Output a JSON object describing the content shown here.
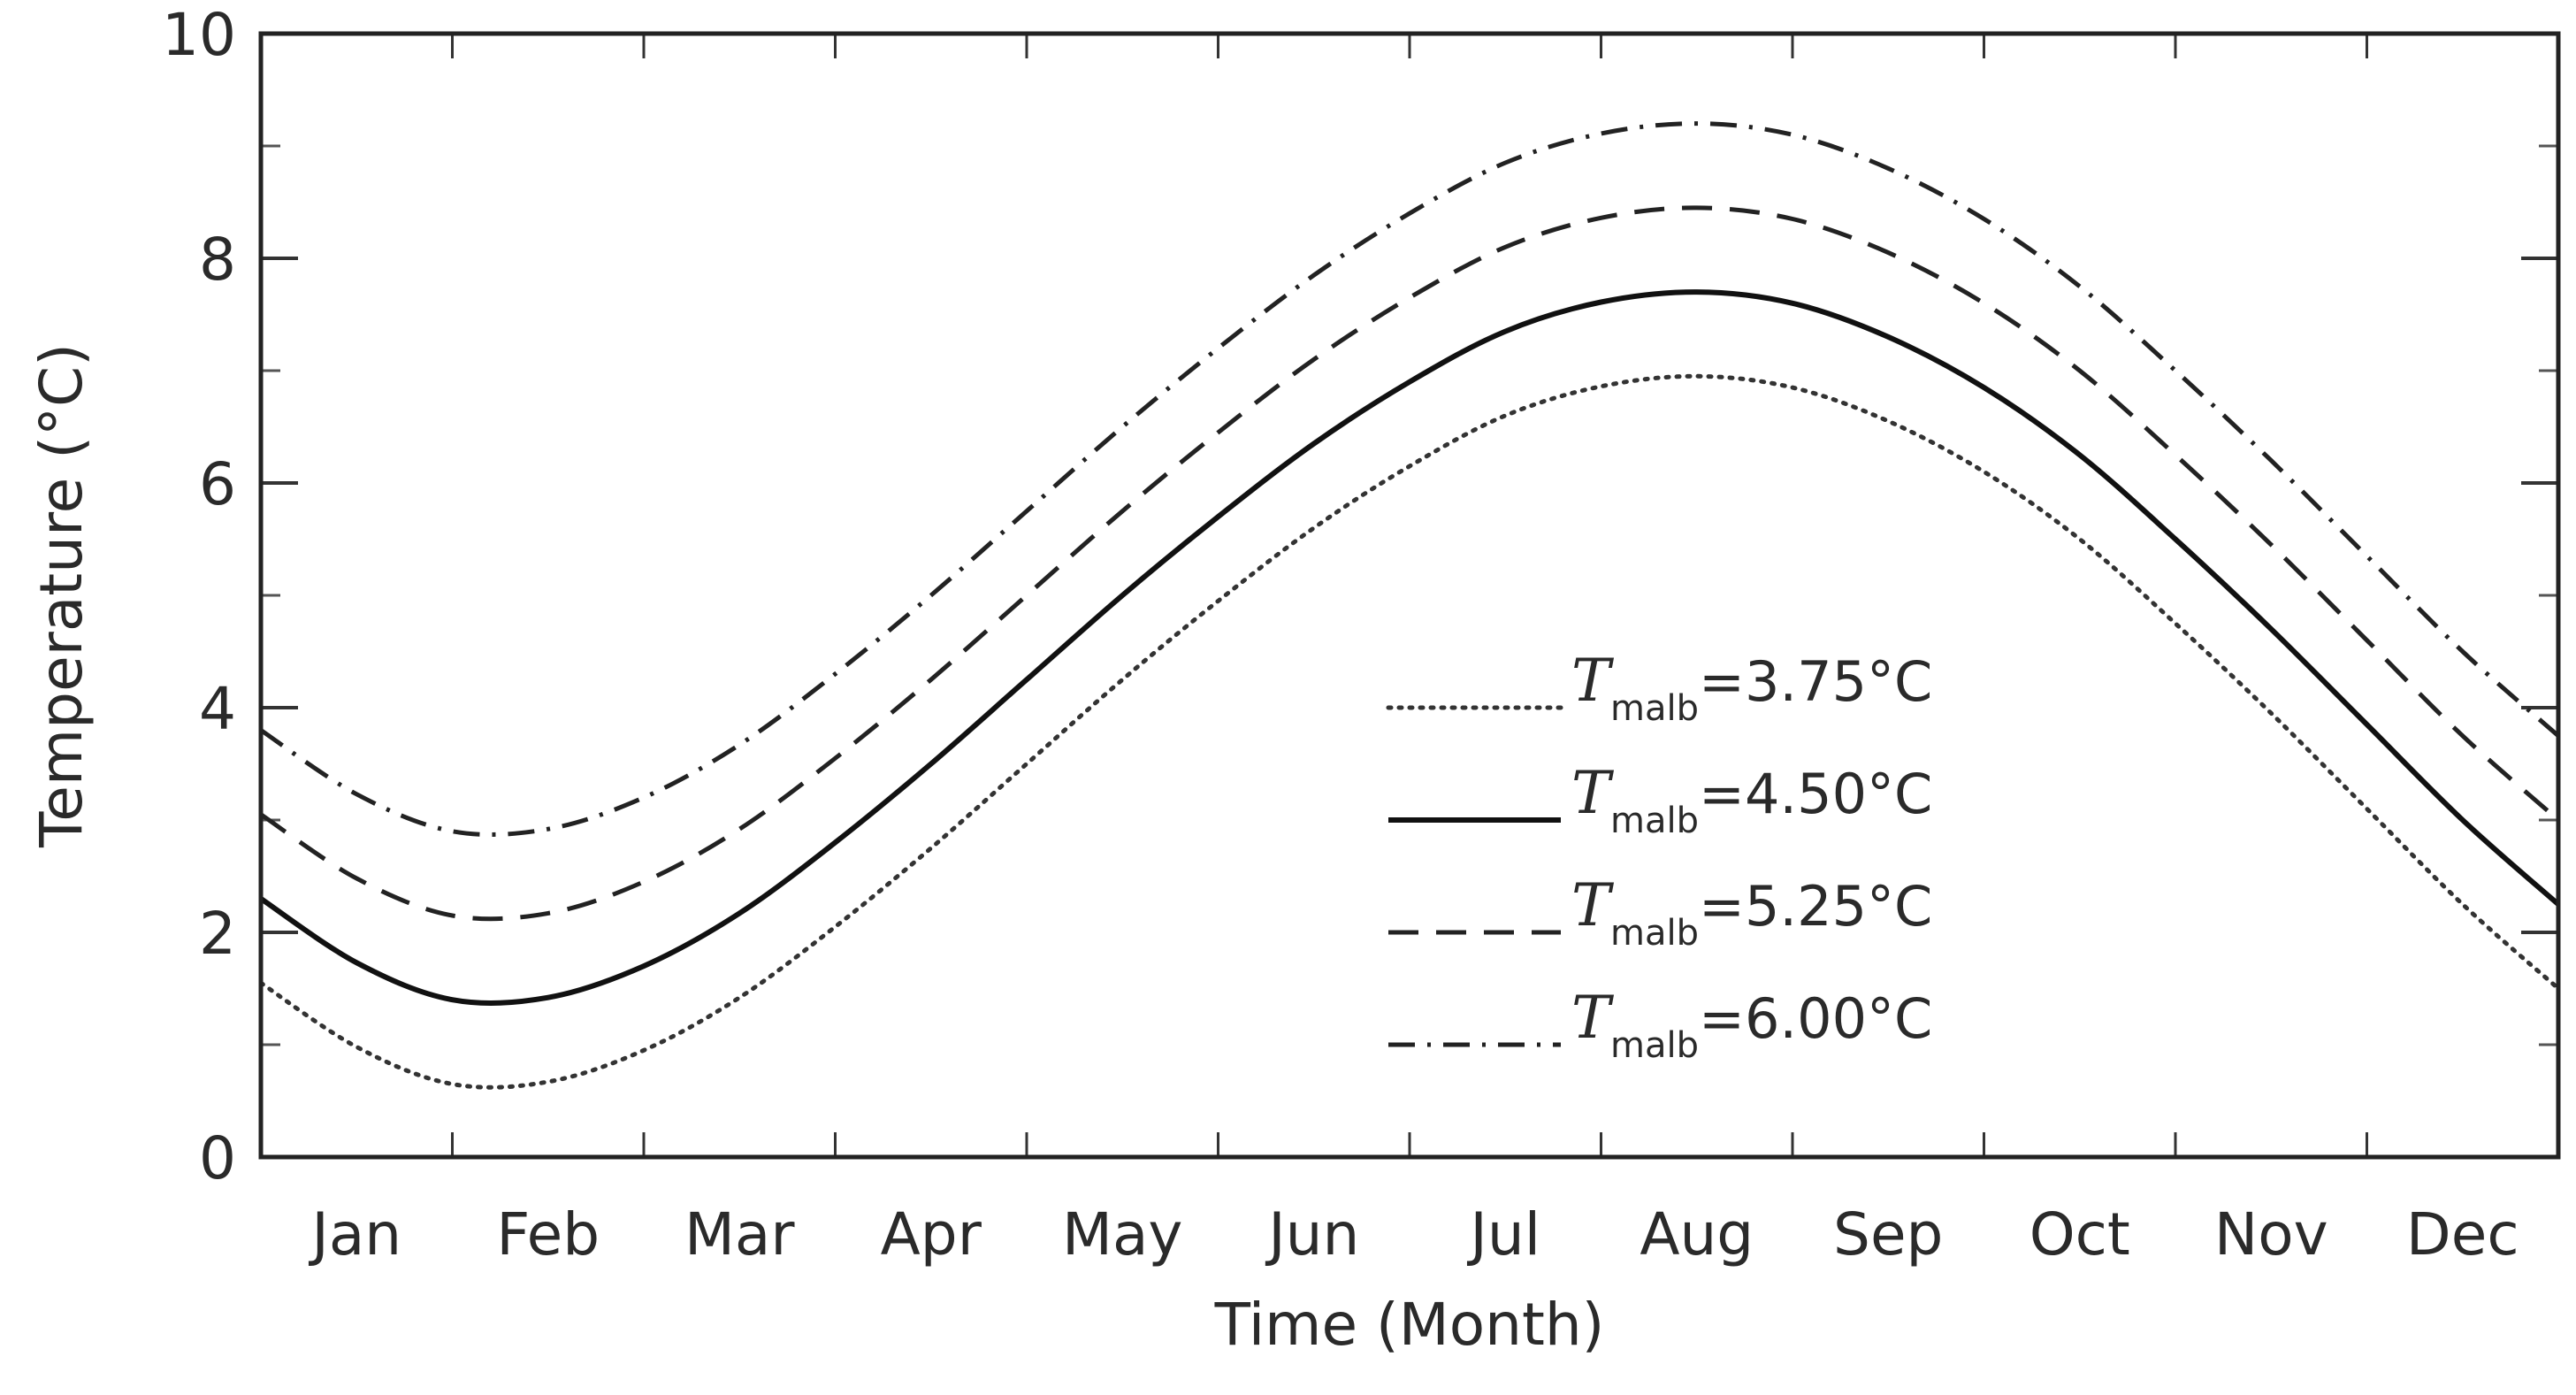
{
  "chart_data": {
    "type": "line",
    "xlabel": "Time (Month)",
    "ylabel": "Temperature (°C)",
    "ylim": [
      0,
      10
    ],
    "xlim": [
      0,
      12
    ],
    "yticks": [
      "0",
      "2",
      "4",
      "6",
      "8",
      "10"
    ],
    "categories": [
      "Jan",
      "Feb",
      "Mar",
      "Apr",
      "May",
      "Jun",
      "Jul",
      "Aug",
      "Sep",
      "Oct",
      "Nov",
      "Dec"
    ],
    "grid": false,
    "legend_placement": "center-right",
    "series": [
      {
        "name": "T_malb=3.75°C",
        "legend": {
          "symbol": "T",
          "subscript": "malb",
          "rest": "=3.75°C"
        },
        "line_style": "dotted",
        "color": "#333333",
        "x": [
          0,
          0.5,
          1,
          1.5,
          2,
          2.5,
          3,
          3.5,
          4,
          4.5,
          5,
          5.5,
          6,
          6.5,
          7,
          7.5,
          8,
          8.5,
          9,
          9.5,
          10,
          10.5,
          11,
          11.5,
          12
        ],
        "values": [
          1.55,
          0.98,
          0.65,
          0.67,
          0.95,
          1.42,
          2.05,
          2.75,
          3.5,
          4.25,
          4.95,
          5.6,
          6.15,
          6.6,
          6.86,
          6.95,
          6.85,
          6.55,
          6.1,
          5.5,
          4.75,
          3.95,
          3.1,
          2.25,
          1.5
        ]
      },
      {
        "name": "T_malb=4.50°C",
        "legend": {
          "symbol": "T",
          "subscript": "malb",
          "rest": "=4.50°C"
        },
        "line_style": "solid",
        "color": "#111111",
        "x": [
          0,
          0.5,
          1,
          1.5,
          2,
          2.5,
          3,
          3.5,
          4,
          4.5,
          5,
          5.5,
          6,
          6.5,
          7,
          7.5,
          8,
          8.5,
          9,
          9.5,
          10,
          10.5,
          11,
          11.5,
          12
        ],
        "values": [
          2.3,
          1.73,
          1.4,
          1.42,
          1.7,
          2.17,
          2.8,
          3.5,
          4.25,
          5.0,
          5.7,
          6.35,
          6.9,
          7.35,
          7.61,
          7.7,
          7.6,
          7.3,
          6.85,
          6.25,
          5.5,
          4.7,
          3.85,
          3.0,
          2.25
        ]
      },
      {
        "name": "T_malb=5.25°C",
        "legend": {
          "symbol": "T",
          "subscript": "malb",
          "rest": "=5.25°C"
        },
        "line_style": "dashed",
        "color": "#222222",
        "x": [
          0,
          0.5,
          1,
          1.5,
          2,
          2.5,
          3,
          3.5,
          4,
          4.5,
          5,
          5.5,
          6,
          6.5,
          7,
          7.5,
          8,
          8.5,
          9,
          9.5,
          10,
          10.5,
          11,
          11.5,
          12
        ],
        "values": [
          3.05,
          2.48,
          2.15,
          2.17,
          2.45,
          2.92,
          3.55,
          4.25,
          5.0,
          5.75,
          6.45,
          7.1,
          7.65,
          8.1,
          8.36,
          8.45,
          8.35,
          8.05,
          7.6,
          7.0,
          6.25,
          5.45,
          4.6,
          3.75,
          3.0
        ]
      },
      {
        "name": "T_malb=6.00°C",
        "legend": {
          "symbol": "T",
          "subscript": "malb",
          "rest": "=6.00°C"
        },
        "line_style": "dashdot",
        "color": "#222222",
        "x": [
          0,
          0.5,
          1,
          1.5,
          2,
          2.5,
          3,
          3.5,
          4,
          4.5,
          5,
          5.5,
          6,
          6.5,
          7,
          7.5,
          8,
          8.5,
          9,
          9.5,
          10,
          10.5,
          11,
          11.5,
          12
        ],
        "values": [
          3.8,
          3.23,
          2.9,
          2.92,
          3.2,
          3.67,
          4.3,
          5.0,
          5.75,
          6.5,
          7.2,
          7.85,
          8.4,
          8.85,
          9.11,
          9.2,
          9.1,
          8.8,
          8.35,
          7.75,
          7.0,
          6.2,
          5.35,
          4.5,
          3.75
        ]
      }
    ]
  }
}
